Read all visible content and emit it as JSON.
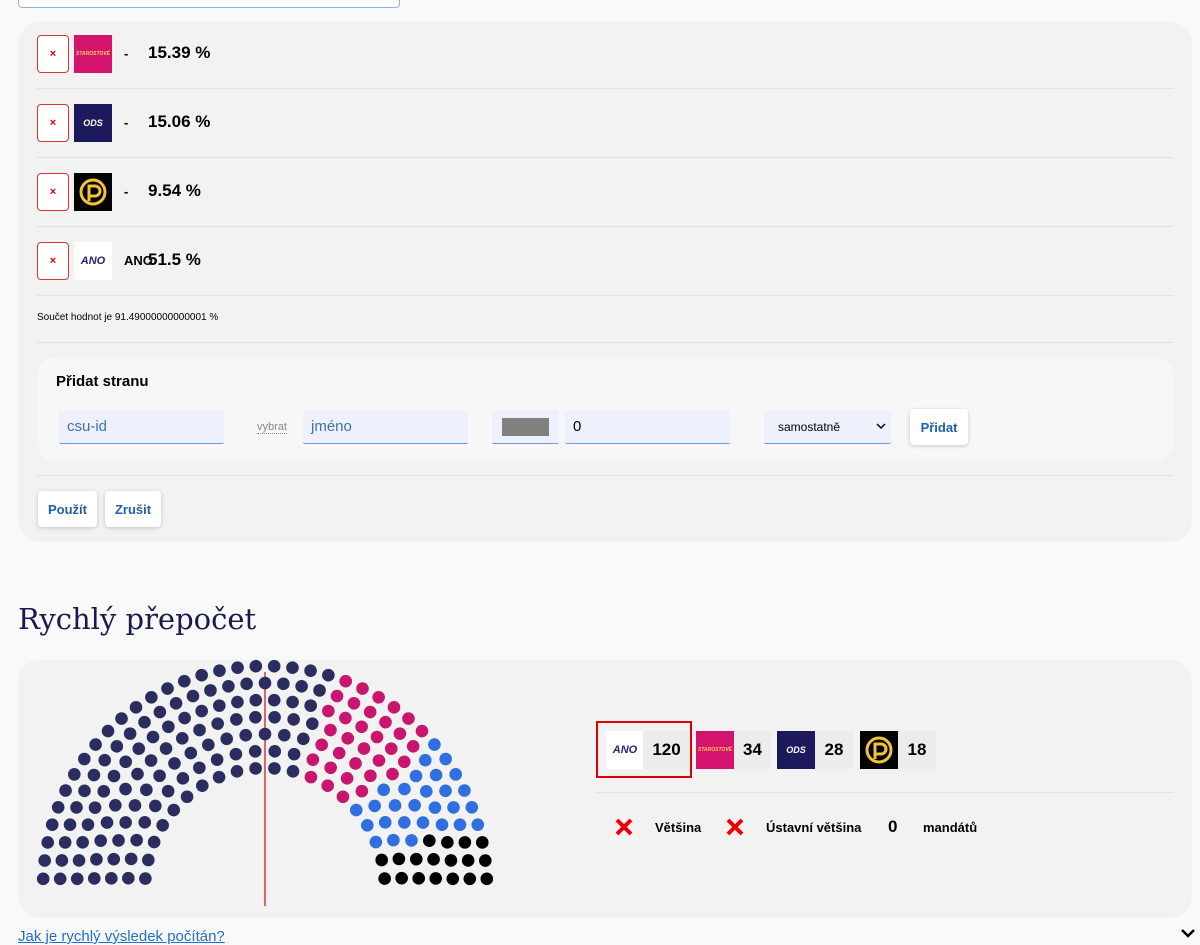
{
  "editor": {
    "rows": [
      {
        "remove": "×",
        "logo": "STAROSTOVÉ",
        "name": "-",
        "percent": "15.39 %"
      },
      {
        "remove": "×",
        "logo": "ODS",
        "name": "-",
        "percent": "15.06 %"
      },
      {
        "remove": "×",
        "name": "-",
        "percent": "9.54 %"
      },
      {
        "remove": "×",
        "logo": "ANO",
        "name": "ANO",
        "percent": "51.5 %"
      }
    ],
    "sum_note": "Součet hodnot je 91.49000000000001 %",
    "add_party": {
      "title": "Přidat stranu",
      "csu_placeholder": "csu-id",
      "pick": "vybrat",
      "name_placeholder": "jméno",
      "value": "0",
      "mode": "samostatně",
      "submit": "Přidat"
    },
    "apply": "Použít",
    "cancel": "Zrušit"
  },
  "quick": {
    "title": "Rychlý přepočet",
    "results": [
      {
        "logo": "ANO",
        "seats": 120,
        "color": "#2b2d5e"
      },
      {
        "logo": "STAROSTOVÉ",
        "seats": 34,
        "color": "#c8156e"
      },
      {
        "logo": "ODS",
        "seats": 28,
        "color": "#2f6fdf"
      },
      {
        "seats": 18,
        "color": "#000000"
      }
    ],
    "majority": "Většina",
    "constitutional": "Ústavní většina",
    "mandates": 0,
    "mandates_label": "mandátů"
  },
  "help_link": "Jak je rychlý výsledek počítán?"
}
